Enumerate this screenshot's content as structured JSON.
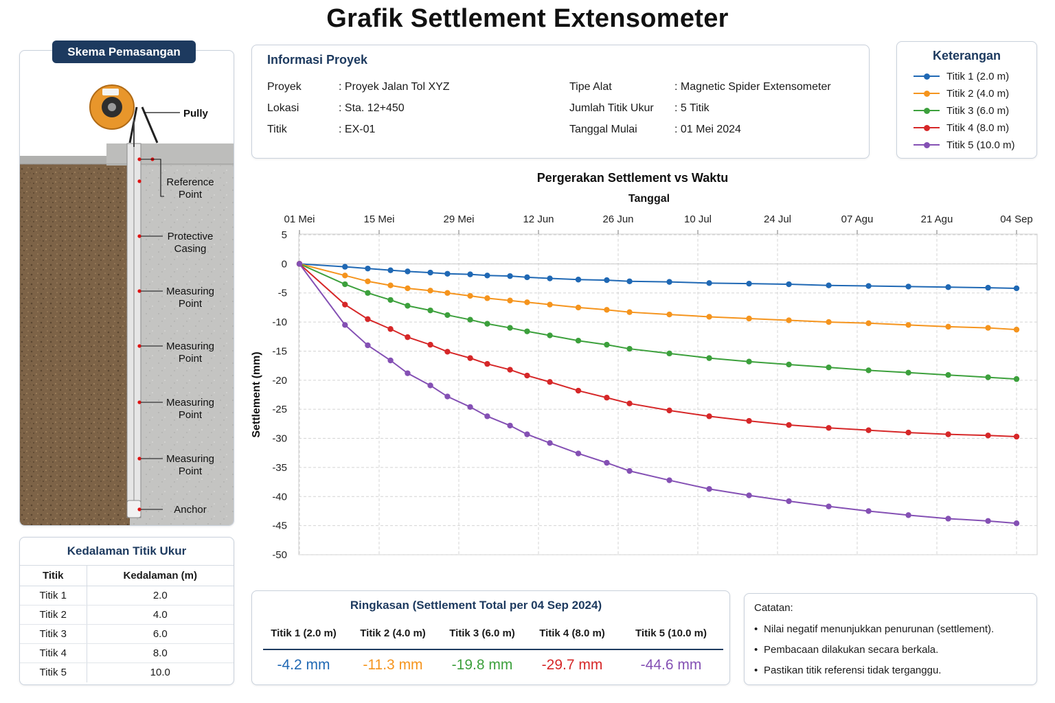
{
  "title": "Grafik Settlement Extensometer",
  "schema": {
    "badge": "Skema Pemasangan",
    "labels": {
      "pully": "Pully",
      "reference": [
        "Reference",
        "Point"
      ],
      "casing": [
        "Protective",
        "Casing"
      ],
      "measuring": [
        "Measuring",
        "Point"
      ],
      "anchor": "Anchor"
    }
  },
  "depth_table": {
    "title": "Kedalaman Titik Ukur",
    "headers": [
      "Titik",
      "Kedalaman (m)"
    ],
    "rows": [
      [
        "Titik 1",
        "2.0"
      ],
      [
        "Titik 2",
        "4.0"
      ],
      [
        "Titik 3",
        "6.0"
      ],
      [
        "Titik 4",
        "8.0"
      ],
      [
        "Titik 5",
        "10.0"
      ]
    ]
  },
  "info": {
    "title": "Informasi Proyek",
    "left": [
      {
        "label": "Proyek",
        "value": ": Proyek Jalan Tol XYZ"
      },
      {
        "label": "Lokasi",
        "value": ": Sta. 12+450"
      },
      {
        "label": "Titik",
        "value": ": EX-01"
      }
    ],
    "right": [
      {
        "label": "Tipe Alat",
        "value": ": Magnetic Spider Extensometer"
      },
      {
        "label": "Jumlah Titik Ukur",
        "value": ": 5 Titik"
      },
      {
        "label": "Tanggal Mulai",
        "value": ": 01 Mei 2024"
      }
    ]
  },
  "legend": {
    "title": "Keterangan",
    "items": [
      "Titik 1 (2.0 m)",
      "Titik 2 (4.0 m)",
      "Titik 3 (6.0 m)",
      "Titik 4 (8.0 m)",
      "Titik 5 (10.0 m)"
    ]
  },
  "chart_data": {
    "type": "line",
    "title": "Pergerakan Settlement vs Waktu",
    "xlabel": "Tanggal",
    "ylabel": "Settlement (mm)",
    "ylim": [
      -50,
      5
    ],
    "yticks": [
      5,
      0,
      -5,
      -10,
      -15,
      -20,
      -25,
      -30,
      -35,
      -40,
      -45,
      -50
    ],
    "xlim": [
      "2024-05-01",
      "2024-09-04"
    ],
    "xticks": [
      {
        "date": "2024-05-01",
        "label": "01 Mei"
      },
      {
        "date": "2024-05-15",
        "label": "15 Mei"
      },
      {
        "date": "2024-05-29",
        "label": "29 Mei"
      },
      {
        "date": "2024-06-12",
        "label": "12 Jun"
      },
      {
        "date": "2024-06-26",
        "label": "26 Jun"
      },
      {
        "date": "2024-07-10",
        "label": "10 Jul"
      },
      {
        "date": "2024-07-24",
        "label": "24 Jul"
      },
      {
        "date": "2024-08-07",
        "label": "07 Agu"
      },
      {
        "date": "2024-08-21",
        "label": "21 Agu"
      },
      {
        "date": "2024-09-04",
        "label": "04 Sep"
      }
    ],
    "grid": true,
    "x": [
      "2024-05-01",
      "2024-05-09",
      "2024-05-13",
      "2024-05-17",
      "2024-05-20",
      "2024-05-24",
      "2024-05-27",
      "2024-05-31",
      "2024-06-03",
      "2024-06-07",
      "2024-06-10",
      "2024-06-14",
      "2024-06-19",
      "2024-06-24",
      "2024-06-28",
      "2024-07-05",
      "2024-07-12",
      "2024-07-19",
      "2024-07-26",
      "2024-08-02",
      "2024-08-09",
      "2024-08-16",
      "2024-08-23",
      "2024-08-30",
      "2024-09-04"
    ],
    "series": [
      {
        "name": "Titik 1 (2.0 m)",
        "color": "#1f68b4",
        "values": [
          0,
          -0.5,
          -0.8,
          -1.1,
          -1.3,
          -1.5,
          -1.7,
          -1.8,
          -2.0,
          -2.1,
          -2.3,
          -2.5,
          -2.7,
          -2.8,
          -3.0,
          -3.1,
          -3.3,
          -3.4,
          -3.5,
          -3.7,
          -3.8,
          -3.9,
          -4.0,
          -4.1,
          -4.2
        ]
      },
      {
        "name": "Titik 2 (4.0 m)",
        "color": "#f5941d",
        "values": [
          0,
          -2.0,
          -3.0,
          -3.7,
          -4.2,
          -4.6,
          -5.0,
          -5.5,
          -5.9,
          -6.3,
          -6.6,
          -7.0,
          -7.5,
          -7.9,
          -8.3,
          -8.7,
          -9.1,
          -9.4,
          -9.7,
          -10.0,
          -10.2,
          -10.5,
          -10.8,
          -11.0,
          -11.3
        ]
      },
      {
        "name": "Titik 3 (6.0 m)",
        "color": "#3ca03c",
        "values": [
          0,
          -3.5,
          -5.0,
          -6.2,
          -7.2,
          -8.0,
          -8.8,
          -9.6,
          -10.3,
          -11.0,
          -11.6,
          -12.3,
          -13.2,
          -13.9,
          -14.6,
          -15.4,
          -16.2,
          -16.8,
          -17.3,
          -17.8,
          -18.3,
          -18.7,
          -19.1,
          -19.5,
          -19.8
        ]
      },
      {
        "name": "Titik 4 (8.0 m)",
        "color": "#d62728",
        "values": [
          0,
          -7.0,
          -9.5,
          -11.2,
          -12.6,
          -13.9,
          -15.1,
          -16.2,
          -17.2,
          -18.2,
          -19.2,
          -20.3,
          -21.8,
          -23.0,
          -24.0,
          -25.2,
          -26.2,
          -27.0,
          -27.7,
          -28.2,
          -28.6,
          -29.0,
          -29.3,
          -29.5,
          -29.7
        ]
      },
      {
        "name": "Titik 5 (10.0 m)",
        "color": "#8450b4",
        "values": [
          0,
          -10.5,
          -14.0,
          -16.6,
          -18.8,
          -20.9,
          -22.8,
          -24.6,
          -26.2,
          -27.8,
          -29.3,
          -30.8,
          -32.6,
          -34.2,
          -35.6,
          -37.2,
          -38.7,
          -39.8,
          -40.8,
          -41.7,
          -42.5,
          -43.2,
          -43.8,
          -44.2,
          -44.6
        ]
      }
    ]
  },
  "summary": {
    "title": "Ringkasan (Settlement Total per 04 Sep 2024)",
    "items": [
      {
        "name": "Titik 1 (2.0 m)",
        "value": "-4.2 mm",
        "color": "#1f68b4"
      },
      {
        "name": "Titik 2 (4.0 m)",
        "value": "-11.3 mm",
        "color": "#f5941d"
      },
      {
        "name": "Titik 3 (6.0 m)",
        "value": "-19.8 mm",
        "color": "#3ca03c"
      },
      {
        "name": "Titik 4 (8.0 m)",
        "value": "-29.7 mm",
        "color": "#d62728"
      },
      {
        "name": "Titik 5 (10.0 m)",
        "value": "-44.6 mm",
        "color": "#8450b4"
      }
    ]
  },
  "notes": {
    "title": "Catatan:",
    "items": [
      "Nilai negatif menunjukkan penurunan (settlement).",
      "Pembacaan dilakukan secara berkala.",
      "Pastikan titik referensi tidak terganggu."
    ]
  }
}
